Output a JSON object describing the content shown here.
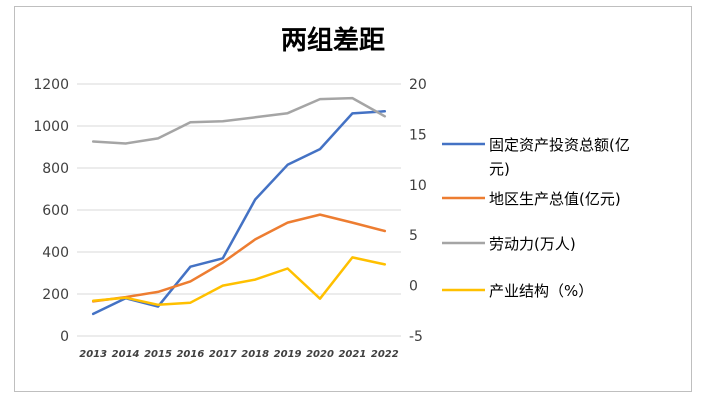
{
  "chart_data": {
    "type": "line",
    "title": "两组差距",
    "categories": [
      "2013",
      "2014",
      "2015",
      "2016",
      "2017",
      "2018",
      "2019",
      "2020",
      "2021",
      "2022"
    ],
    "ylim_left": [
      0,
      1200
    ],
    "ylim_right": [
      -5,
      20
    ],
    "yticks_left": [
      "0",
      "200",
      "400",
      "600",
      "800",
      "1000",
      "1200"
    ],
    "yticks_right": [
      "-5",
      "0",
      "5",
      "10",
      "15",
      "20"
    ],
    "grid": true,
    "legend_position": "right",
    "series": [
      {
        "name": "固定资产投资总额(亿元)",
        "axis": "left",
        "color": "#4472c4",
        "values": [
          105,
          180,
          140,
          330,
          370,
          650,
          815,
          890,
          1060,
          1070
        ]
      },
      {
        "name": "地区生产总值(亿元)",
        "axis": "left",
        "color": "#ed7d31",
        "values": [
          165,
          185,
          210,
          260,
          350,
          460,
          540,
          578,
          540,
          500
        ]
      },
      {
        "name": "劳动力(万人)",
        "axis": "right",
        "color": "#a5a5a5",
        "values": [
          14.3,
          14.1,
          14.6,
          16.2,
          16.3,
          16.7,
          17.1,
          18.5,
          18.6,
          16.8
        ]
      },
      {
        "name": "产业结构（%）",
        "axis": "right",
        "color": "#ffc000",
        "values": [
          -1.5,
          -1.2,
          -1.9,
          -1.7,
          0.0,
          0.6,
          1.7,
          -1.3,
          2.8,
          2.1
        ]
      }
    ],
    "legend_lines": [
      [
        "固定资产投资总额(亿",
        "元)"
      ],
      [
        "地区生产总值(亿元)"
      ],
      [
        "劳动力(万人)"
      ],
      [
        "产业结构（%）"
      ]
    ]
  }
}
